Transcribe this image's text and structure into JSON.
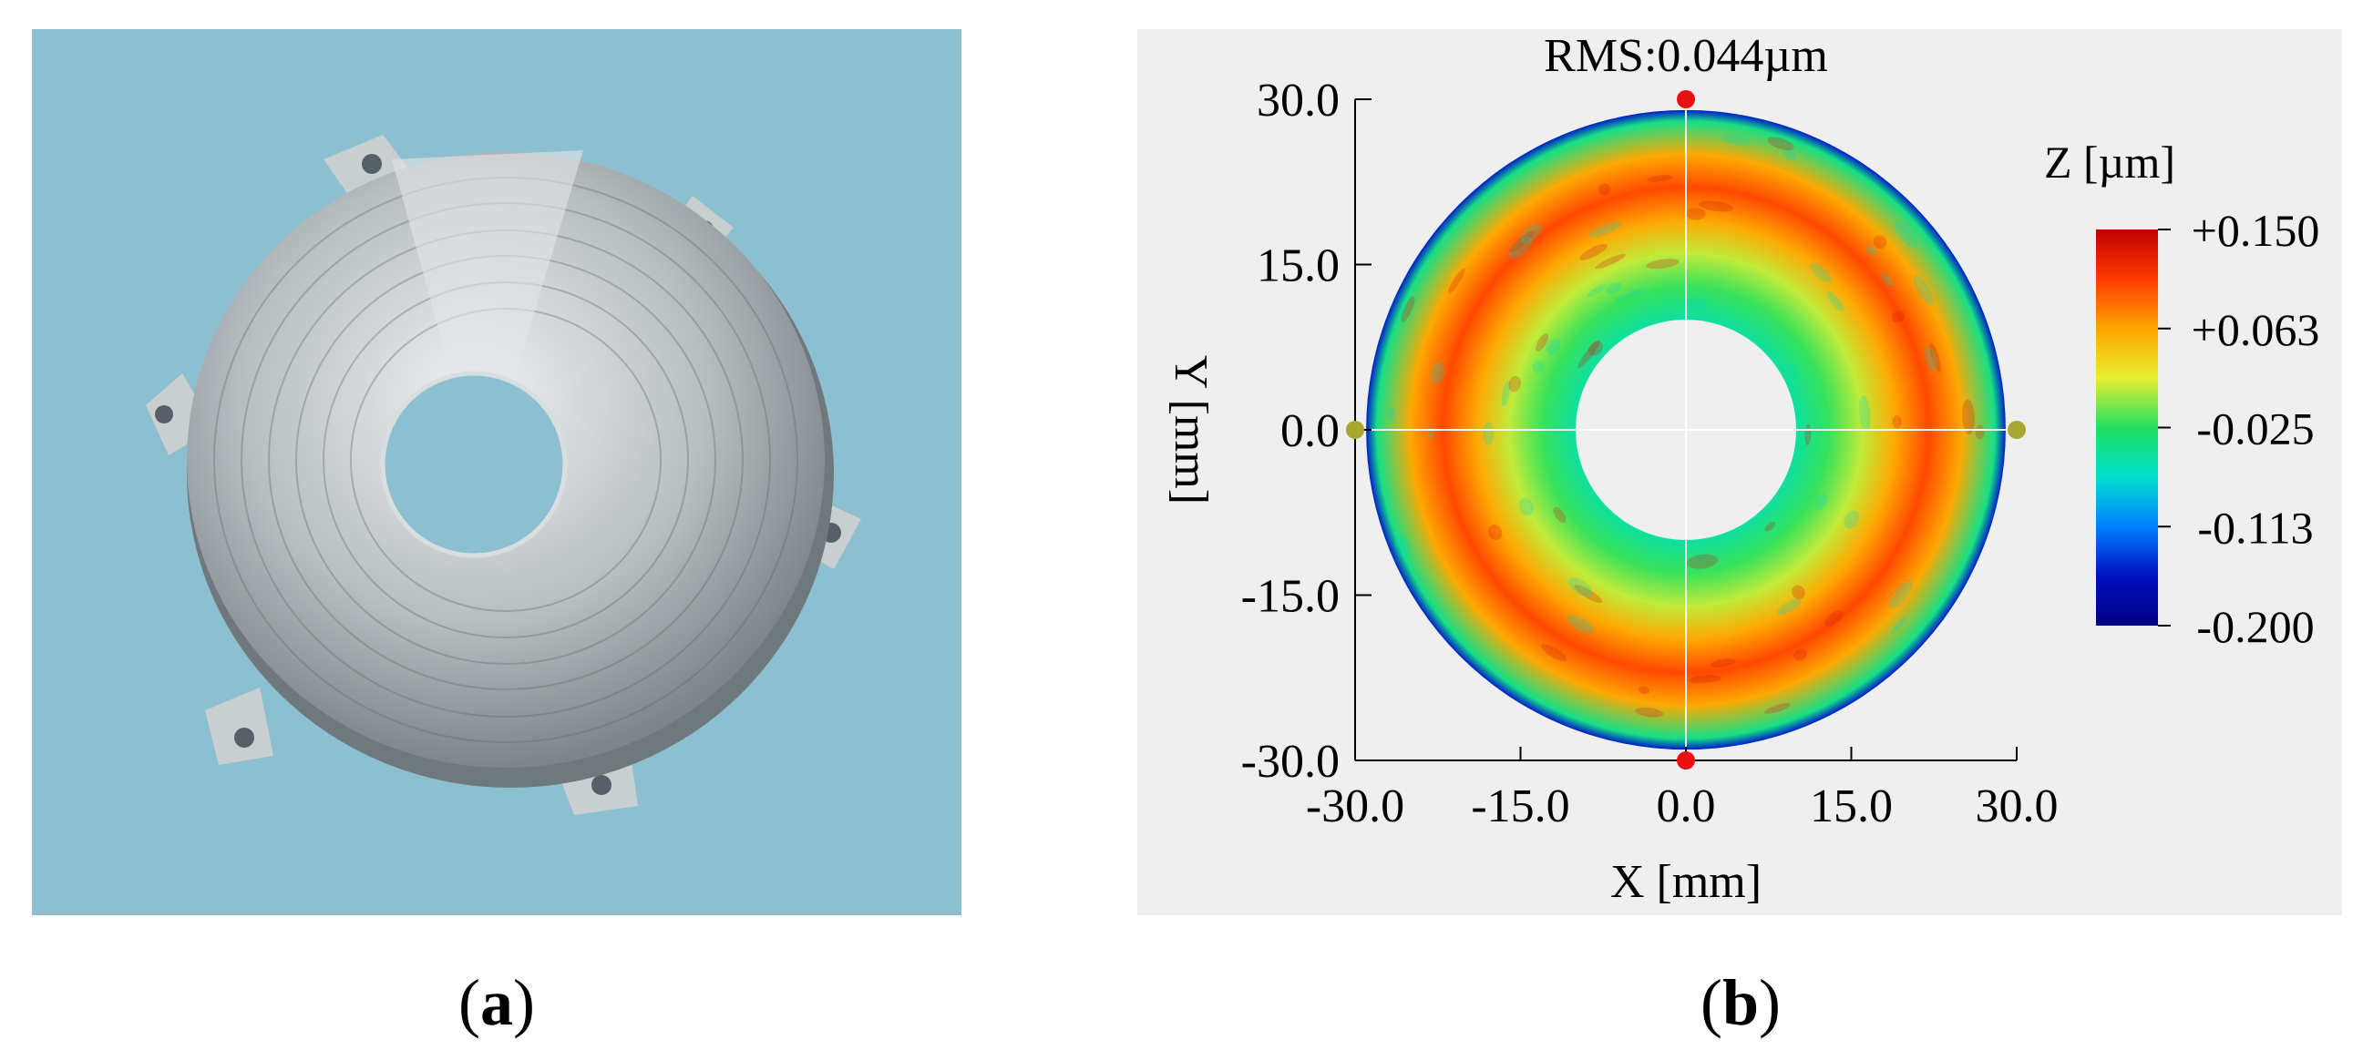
{
  "panel_a": {
    "caption_open": "(",
    "caption_letter": "a",
    "caption_close": ")",
    "background_color": "#8cc0d0",
    "part_color": "#c9ced0"
  },
  "panel_b": {
    "caption_open": "(",
    "caption_letter": "b",
    "caption_close": ")",
    "title": "RMS:0.044µm",
    "xlabel": "X [mm]",
    "ylabel": "Y [mm]",
    "x_ticks": [
      "-30.0",
      "-15.0",
      "0.0",
      "15.0",
      "30.0"
    ],
    "y_ticks": [
      "30.0",
      "15.0",
      "0.0",
      "-15.0",
      "-30.0"
    ],
    "colorbar": {
      "title": "Z [µm]",
      "labels": [
        "+0.150",
        "+0.063",
        "-0.025",
        "-0.113",
        "-0.200"
      ],
      "colors": [
        "#c00000",
        "#ff3a00",
        "#ffa500",
        "#e8ee30",
        "#20e060",
        "#00e0d0",
        "#0080ff",
        "#0010c0",
        "#000080"
      ]
    },
    "panel_background": "#efefef"
  },
  "chart_data": {
    "type": "heatmap",
    "title": "RMS:0.044µm",
    "xlabel": "X [mm]",
    "ylabel": "Y [mm]",
    "xlim": [
      -30,
      30
    ],
    "ylim": [
      -30,
      30
    ],
    "zlim": [
      -0.2,
      0.15
    ],
    "colorbar_label": "Z [µm]",
    "colorbar_ticks": [
      0.15,
      0.063,
      -0.025,
      -0.113,
      -0.2
    ],
    "aperture": {
      "outer_radius_mm": 29,
      "inner_radius_mm": 10
    },
    "radial_profile": [
      {
        "r_mm": 10,
        "z": -0.05
      },
      {
        "r_mm": 13,
        "z": -0.02
      },
      {
        "r_mm": 16,
        "z": 0.01
      },
      {
        "r_mm": 19,
        "z": 0.06
      },
      {
        "r_mm": 22,
        "z": 0.1
      },
      {
        "r_mm": 25,
        "z": 0.06
      },
      {
        "r_mm": 28,
        "z": -0.04
      },
      {
        "r_mm": 29,
        "z": -0.15
      }
    ],
    "markers": [
      {
        "x": 0,
        "y": 30,
        "color": "#e81010"
      },
      {
        "x": 0,
        "y": -30,
        "color": "#e81010"
      },
      {
        "x": -30,
        "y": 0,
        "color": "#a8a830"
      },
      {
        "x": 30,
        "y": 0,
        "color": "#a8a830"
      }
    ],
    "grid": false
  }
}
